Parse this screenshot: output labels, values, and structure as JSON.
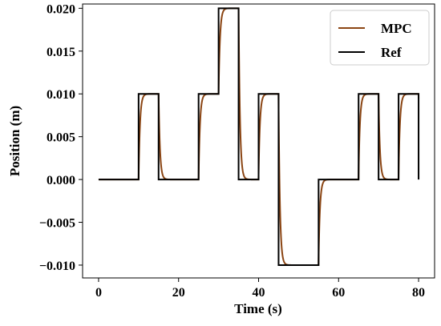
{
  "chart_data": {
    "type": "line",
    "xlabel": "Time (s)",
    "ylabel": "Position (m)",
    "xlim": [
      -4,
      84
    ],
    "ylim": [
      -0.0115,
      0.0205
    ],
    "xticks": [
      0,
      20,
      40,
      60,
      80
    ],
    "xtick_labels": [
      "0",
      "20",
      "40",
      "60",
      "80"
    ],
    "yticks": [
      -0.01,
      -0.005,
      0.0,
      0.005,
      0.01,
      0.015,
      0.02
    ],
    "ytick_labels": [
      "−0.010",
      "−0.005",
      "0.000",
      "0.005",
      "0.010",
      "0.015",
      "0.020"
    ],
    "grid": false,
    "legend_position": "top-right",
    "series": [
      {
        "name": "MPC",
        "color": "#8B4513",
        "steps": [
          [
            0,
            0.0
          ],
          [
            10,
            0.01
          ],
          [
            15,
            0.0
          ],
          [
            25,
            0.01
          ],
          [
            30,
            0.02
          ],
          [
            35,
            0.0
          ],
          [
            40,
            0.01
          ],
          [
            45,
            -0.01
          ],
          [
            55,
            0.0
          ],
          [
            65,
            0.01
          ],
          [
            70,
            0.0
          ],
          [
            75,
            0.01
          ],
          [
            80,
            0.0
          ]
        ],
        "end_x": 80,
        "response": "first-order lag, time constant ~0.35 s"
      },
      {
        "name": "Ref",
        "color": "#000000",
        "steps": [
          [
            0,
            0.0
          ],
          [
            10,
            0.01
          ],
          [
            15,
            0.0
          ],
          [
            25,
            0.01
          ],
          [
            30,
            0.02
          ],
          [
            35,
            0.0
          ],
          [
            40,
            0.01
          ],
          [
            45,
            -0.01
          ],
          [
            55,
            0.0
          ],
          [
            65,
            0.01
          ],
          [
            70,
            0.0
          ],
          [
            75,
            0.01
          ],
          [
            80,
            0.0
          ]
        ],
        "end_x": 80
      }
    ]
  }
}
